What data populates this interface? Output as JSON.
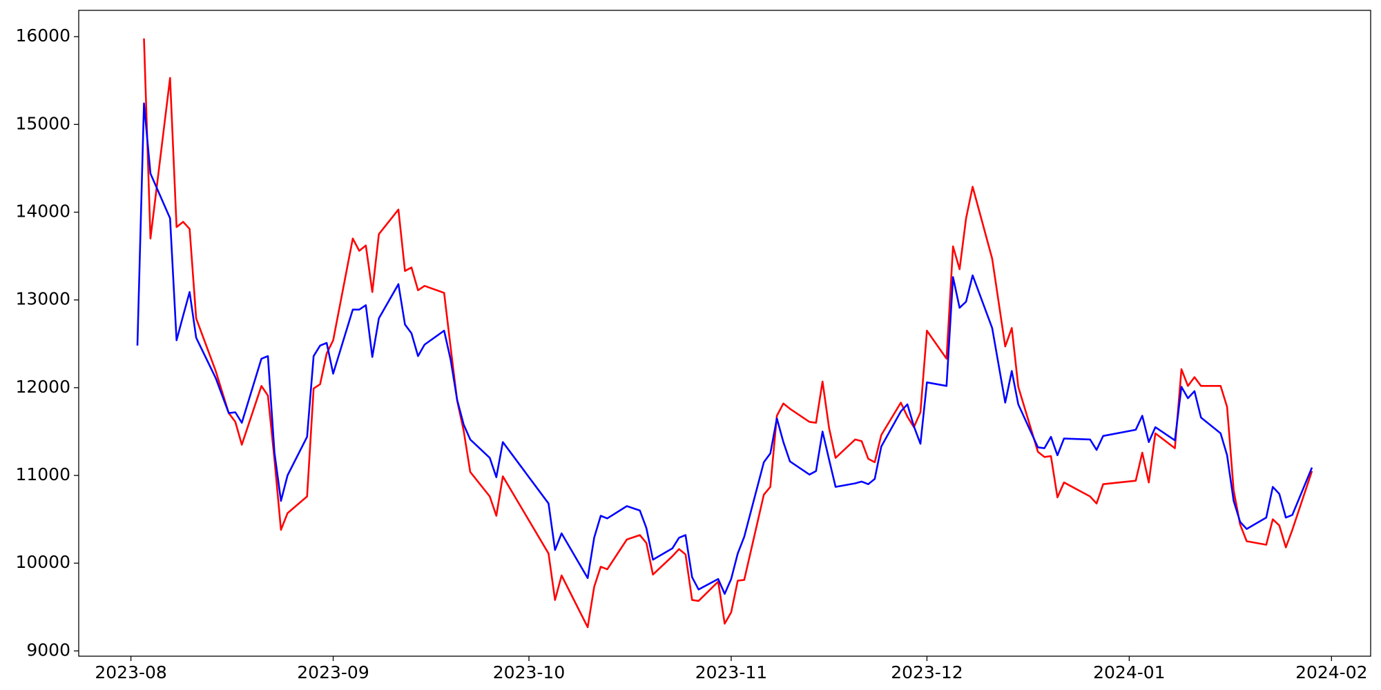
{
  "chart_data": {
    "type": "line",
    "x": [
      1,
      2,
      3,
      6,
      7,
      8,
      9,
      10,
      13,
      15,
      16,
      17,
      20,
      21,
      22,
      23,
      24,
      27,
      28,
      29,
      30,
      31,
      34,
      35,
      36,
      37,
      38,
      41,
      42,
      43,
      44,
      45,
      48,
      49,
      50,
      51,
      52,
      55,
      56,
      57,
      64,
      65,
      66,
      70,
      71,
      72,
      73,
      76,
      78,
      79,
      80,
      83,
      84,
      85,
      86,
      87,
      90,
      91,
      92,
      93,
      94,
      97,
      98,
      99,
      100,
      101,
      104,
      105,
      106,
      107,
      108,
      111,
      112,
      113,
      114,
      115,
      118,
      119,
      120,
      121,
      122,
      125,
      126,
      127,
      128,
      129,
      132,
      134,
      135,
      136,
      139,
      140,
      141,
      142,
      143,
      147,
      148,
      149,
      154,
      155,
      156,
      157,
      160,
      161,
      162,
      163,
      164,
      167,
      168,
      169,
      170,
      171,
      174,
      175,
      176,
      177,
      178,
      181
    ],
    "series": [
      {
        "color": "#ff0000",
        "values": [
          null,
          15980,
          13700,
          15530,
          13830,
          13890,
          13810,
          12790,
          12190,
          11710,
          11610,
          11350,
          12020,
          11910,
          11180,
          10380,
          10570,
          10760,
          11990,
          12040,
          12390,
          12540,
          13700,
          13560,
          13620,
          13090,
          13750,
          14030,
          13330,
          13370,
          13110,
          13160,
          13080,
          12460,
          11850,
          11510,
          11040,
          10760,
          10540,
          10990,
          10110,
          9580,
          9860,
          9270,
          9730,
          9960,
          9930,
          10270,
          10320,
          10230,
          9870,
          10080,
          10160,
          10100,
          9580,
          9570,
          9790,
          9310,
          9440,
          9800,
          9810,
          10780,
          10870,
          11680,
          11820,
          11760,
          11610,
          11600,
          12070,
          11540,
          11200,
          11410,
          11390,
          11190,
          11150,
          11460,
          11830,
          11670,
          11550,
          11720,
          12650,
          12330,
          13610,
          13350,
          13930,
          14290,
          13470,
          12470,
          12680,
          12010,
          11270,
          11210,
          11220,
          10750,
          10920,
          10760,
          10680,
          10900,
          10940,
          11260,
          10920,
          11480,
          11310,
          12210,
          12020,
          12120,
          12020,
          12020,
          11780,
          10830,
          10440,
          10250,
          10210,
          10500,
          10430,
          10180,
          10380,
          11050
        ]
      },
      {
        "color": "#0000ff",
        "values": [
          12480,
          15240,
          14440,
          13930,
          12540,
          12820,
          13090,
          12570,
          12110,
          11710,
          11720,
          11600,
          12330,
          12360,
          11260,
          10710,
          11000,
          11440,
          12360,
          12480,
          12510,
          12160,
          12890,
          12890,
          12940,
          12350,
          12790,
          13180,
          12720,
          12620,
          12360,
          12490,
          12650,
          12320,
          11860,
          11580,
          11410,
          11200,
          10980,
          11380,
          10680,
          10150,
          10340,
          9830,
          10290,
          10540,
          10510,
          10650,
          10600,
          10400,
          10040,
          10170,
          10290,
          10320,
          9840,
          9700,
          9820,
          9650,
          9820,
          10110,
          10300,
          11150,
          11250,
          11650,
          11380,
          11160,
          11010,
          11050,
          11500,
          11180,
          10870,
          10910,
          10930,
          10900,
          10960,
          11330,
          11730,
          11810,
          11560,
          11360,
          12060,
          12020,
          13260,
          12910,
          12980,
          13280,
          12680,
          11830,
          12190,
          11810,
          11320,
          11310,
          11440,
          11230,
          11420,
          11410,
          11290,
          11450,
          11520,
          11680,
          11380,
          11550,
          11400,
          12010,
          11880,
          11960,
          11660,
          11480,
          11230,
          10710,
          10470,
          10390,
          10520,
          10870,
          10790,
          10520,
          10550,
          11090
        ]
      }
    ],
    "xlim": [
      -8,
      190
    ],
    "xticks": [
      {
        "value": 0,
        "label": "2023-08"
      },
      {
        "value": 31,
        "label": "2023-09"
      },
      {
        "value": 61,
        "label": "2023-10"
      },
      {
        "value": 92,
        "label": "2023-11"
      },
      {
        "value": 122,
        "label": "2023-12"
      },
      {
        "value": 153,
        "label": "2024-01"
      },
      {
        "value": 184,
        "label": "2024-02"
      }
    ],
    "ylim": [
      8940,
      16300
    ],
    "yticks": [
      9000,
      10000,
      11000,
      12000,
      13000,
      14000,
      15000,
      16000
    ],
    "grid": false
  }
}
